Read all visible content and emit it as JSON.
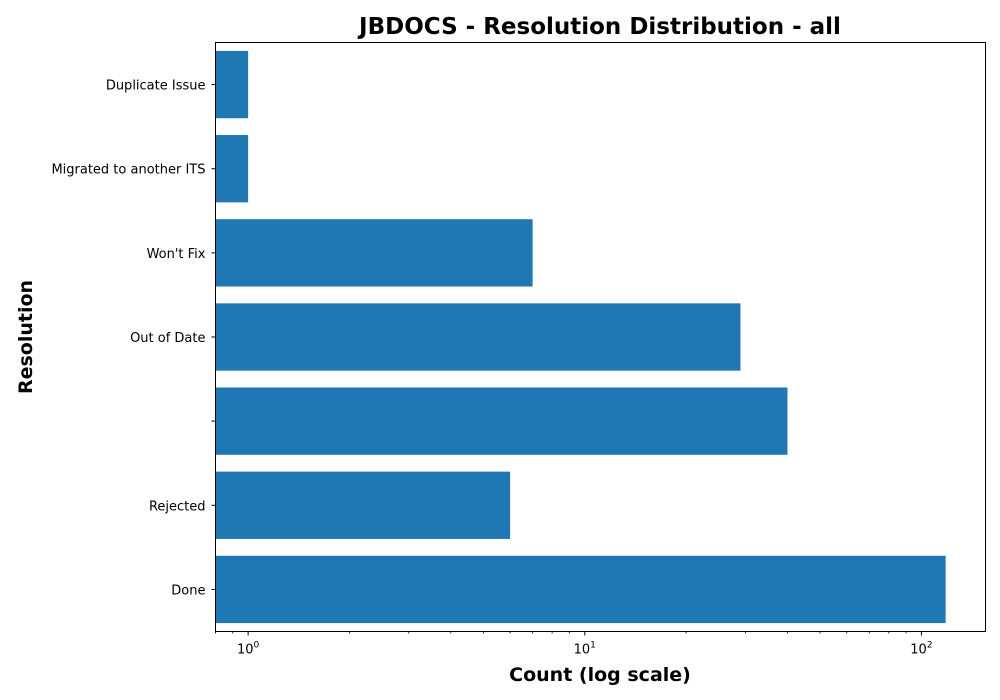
{
  "chart_data": {
    "type": "bar",
    "orientation": "horizontal",
    "title": "JBDOCS - Resolution Distribution - all",
    "xlabel": "Count (log scale)",
    "ylabel": "Resolution",
    "xscale": "log",
    "xlim": [
      0.8,
      155
    ],
    "x_ticks": [
      {
        "value": 1,
        "base": "10",
        "exp": "0"
      },
      {
        "value": 10,
        "base": "10",
        "exp": "1"
      },
      {
        "value": 100,
        "base": "10",
        "exp": "2"
      }
    ],
    "categories": [
      "Done",
      "Rejected",
      "",
      "Out of Date",
      "Won't Fix",
      "Migrated to another ITS",
      "Duplicate Issue"
    ],
    "values": [
      118,
      6,
      40,
      29,
      7,
      1,
      1
    ],
    "bar_color": "#1f77b4",
    "grid": false,
    "legend": "none"
  }
}
